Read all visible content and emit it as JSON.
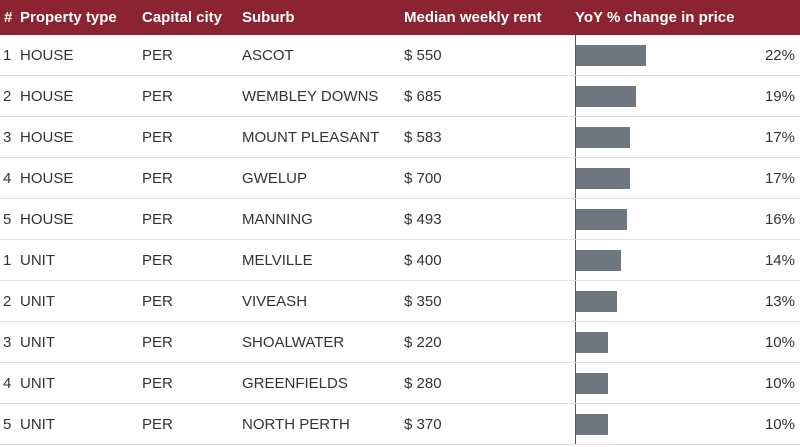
{
  "chart_data": {
    "type": "table",
    "columns": [
      "#",
      "Property type",
      "Capital city",
      "Suburb",
      "Median weekly rent",
      "YoY % change in price"
    ],
    "rows": [
      {
        "rank": "1",
        "type": "HOUSE",
        "city": "PER",
        "suburb": "ASCOT",
        "rent": "$ 550",
        "yoy": 22,
        "yoy_label": "22%"
      },
      {
        "rank": "2",
        "type": "HOUSE",
        "city": "PER",
        "suburb": "WEMBLEY DOWNS",
        "rent": "$ 685",
        "yoy": 19,
        "yoy_label": "19%"
      },
      {
        "rank": "3",
        "type": "HOUSE",
        "city": "PER",
        "suburb": "MOUNT PLEASANT",
        "rent": "$ 583",
        "yoy": 17,
        "yoy_label": "17%"
      },
      {
        "rank": "4",
        "type": "HOUSE",
        "city": "PER",
        "suburb": "GWELUP",
        "rent": "$ 700",
        "yoy": 17,
        "yoy_label": "17%"
      },
      {
        "rank": "5",
        "type": "HOUSE",
        "city": "PER",
        "suburb": "MANNING",
        "rent": "$ 493",
        "yoy": 16,
        "yoy_label": "16%"
      },
      {
        "rank": "1",
        "type": "UNIT",
        "city": "PER",
        "suburb": "MELVILLE",
        "rent": "$ 400",
        "yoy": 14,
        "yoy_label": "14%"
      },
      {
        "rank": "2",
        "type": "UNIT",
        "city": "PER",
        "suburb": "VIVEASH",
        "rent": "$ 350",
        "yoy": 13,
        "yoy_label": "13%"
      },
      {
        "rank": "3",
        "type": "UNIT",
        "city": "PER",
        "suburb": "SHOALWATER",
        "rent": "$ 220",
        "yoy": 10,
        "yoy_label": "10%"
      },
      {
        "rank": "4",
        "type": "UNIT",
        "city": "PER",
        "suburb": "GREENFIELDS",
        "rent": "$ 280",
        "yoy": 10,
        "yoy_label": "10%"
      },
      {
        "rank": "5",
        "type": "UNIT",
        "city": "PER",
        "suburb": "NORTH PERTH",
        "rent": "$ 370",
        "yoy": 10,
        "yoy_label": "10%"
      }
    ],
    "bar_max": 22
  },
  "colors": {
    "header_bg": "#8b2332",
    "bar": "#6e7680"
  }
}
